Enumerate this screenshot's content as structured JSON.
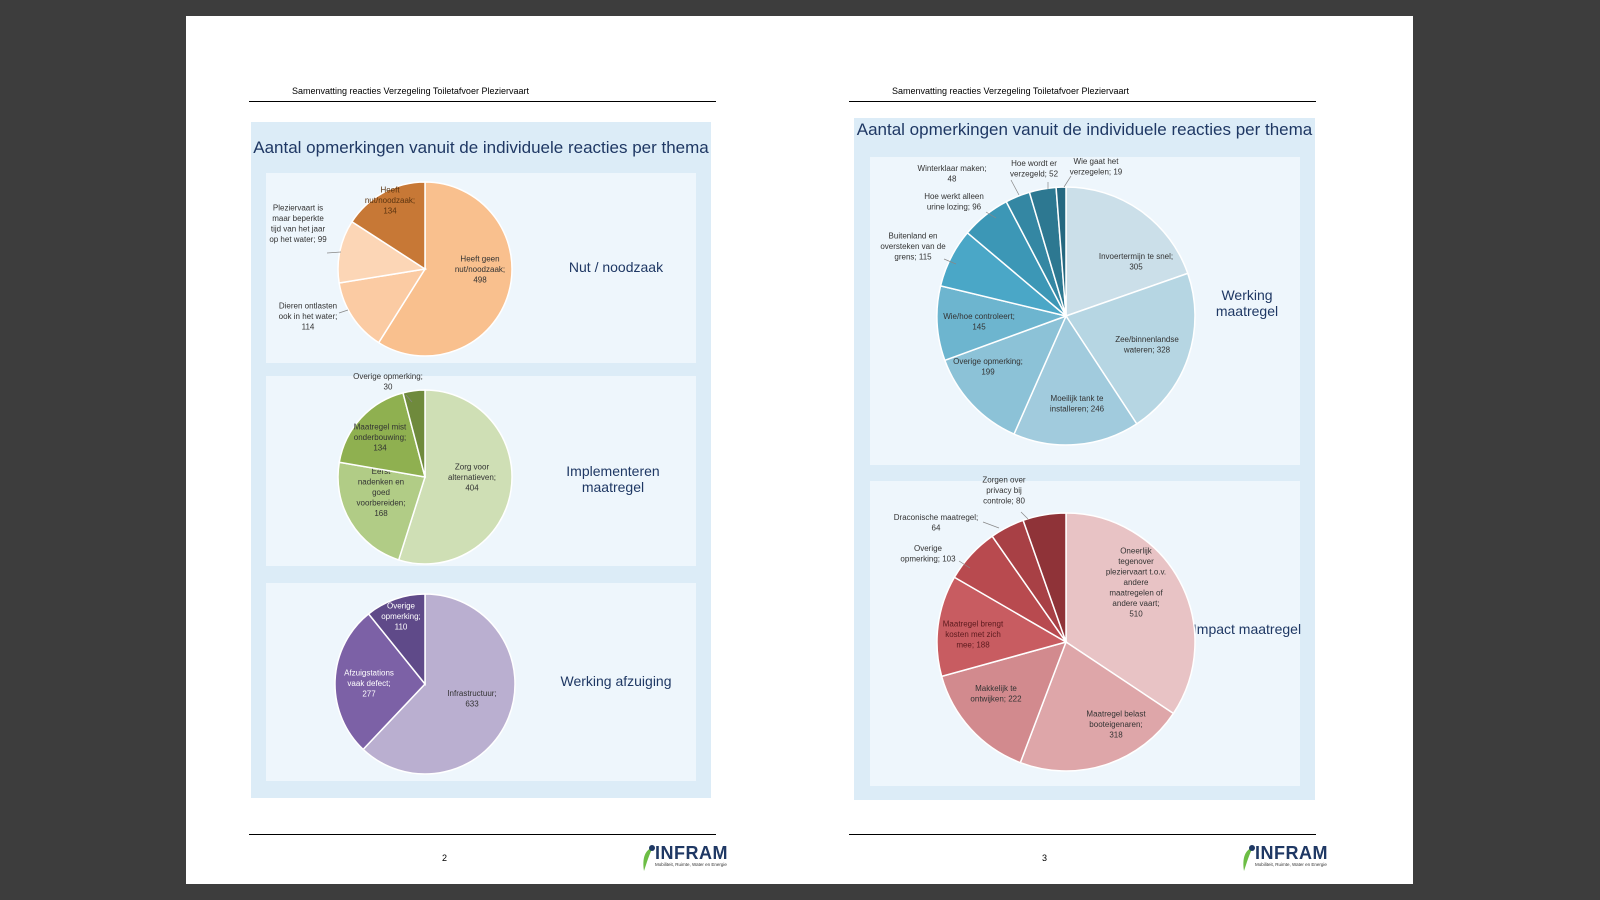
{
  "document": {
    "header": "Samenvatting reacties Verzegeling Toiletafvoer Pleziervaart",
    "logo_text": "INFRAM",
    "logo_tagline": "Mobiliteit, Ruimte, Water en Energie"
  },
  "pages": [
    {
      "number": "2",
      "title": "Aantal opmerkingen vanuit de individuele reacties per thema"
    },
    {
      "number": "3",
      "title": "Aantal opmerkingen vanuit de individuele reacties per thema"
    }
  ],
  "chart_data": [
    {
      "type": "pie",
      "title": "Nut / noodzaak",
      "slices": [
        {
          "label": "Heeft geen nut/noodzaak; 498",
          "value": 498,
          "color": "#f9c08e"
        },
        {
          "label": "Dieren ontlasten ook in het water; 114",
          "value": 114,
          "color": "#fbcba3"
        },
        {
          "label": "Pleziervaart is maar beperkte tijd van het jaar op het water; 99",
          "value": 99,
          "color": "#fcd6b6"
        },
        {
          "label": "Heeft nut/noodzaak; 134",
          "value": 134,
          "color": "#c77836"
        }
      ]
    },
    {
      "type": "pie",
      "title": "Implementeren maatregel",
      "slices": [
        {
          "label": "Zorg voor alternatieven; 404",
          "value": 404,
          "color": "#cfdfb5"
        },
        {
          "label": "Eerst nadenken en goed voorbereiden; 168",
          "value": 168,
          "color": "#b1cc86"
        },
        {
          "label": "Maatregel mist onderbouwing; 134",
          "value": 134,
          "color": "#8fb050"
        },
        {
          "label": "Overige opmerking; 30",
          "value": 30,
          "color": "#6f8a3c"
        }
      ]
    },
    {
      "type": "pie",
      "title": "Werking afzuiging",
      "slices": [
        {
          "label": "Infrastructuur; 633",
          "value": 633,
          "color": "#baafd0"
        },
        {
          "label": "Afzuigstations vaak defect; 277",
          "value": 277,
          "color": "#7c61a6"
        },
        {
          "label": "Overige opmerking; 110",
          "value": 110,
          "color": "#5f4a89"
        }
      ]
    },
    {
      "type": "pie",
      "title": "Werking maatregel",
      "slices": [
        {
          "label": "Invoertermijn te snel; 305",
          "value": 305,
          "color": "#cbdfe9"
        },
        {
          "label": "Zee/binnenlandse wateren; 328",
          "value": 328,
          "color": "#b6d6e3"
        },
        {
          "label": "Moeilijk tank te installeren; 246",
          "value": 246,
          "color": "#a1cbdd"
        },
        {
          "label": "Overige opmerking; 199",
          "value": 199,
          "color": "#8cc2d7"
        },
        {
          "label": "Wie/hoe controleert; 145",
          "value": 145,
          "color": "#6db5cf"
        },
        {
          "label": "Buitenland en oversteken van de grens; 115",
          "value": 115,
          "color": "#4aa7c7"
        },
        {
          "label": "Hoe werkt alleen urine lozing; 96",
          "value": 96,
          "color": "#3c97b6"
        },
        {
          "label": "Winterklaar maken; 48",
          "value": 48,
          "color": "#3487a3"
        },
        {
          "label": "Hoe wordt er verzegeld; 52",
          "value": 52,
          "color": "#2d7891"
        },
        {
          "label": "Wie gaat het verzegelen; 19",
          "value": 19,
          "color": "#256880"
        }
      ]
    },
    {
      "type": "pie",
      "title": "Impact maatregel",
      "slices": [
        {
          "label": "Oneerlijk tegenover pleziervaart t.o.v. andere maatregelen of andere vaart; 510",
          "value": 510,
          "color": "#e8c3c5"
        },
        {
          "label": "Maatregel belast booteigenaren; 318",
          "value": 318,
          "color": "#dea6a9"
        },
        {
          "label": "Makkelijk te ontwijken; 222",
          "value": 222,
          "color": "#d28a8e"
        },
        {
          "label": "Maatregel brengt kosten met zich mee; 188",
          "value": 188,
          "color": "#c85c61"
        },
        {
          "label": "Overige opmerking; 103",
          "value": 103,
          "color": "#b84a4f"
        },
        {
          "label": "Draconische maatregel; 64",
          "value": 64,
          "color": "#a84045"
        },
        {
          "label": "Zorgen over privacy bij controle; 80",
          "value": 80,
          "color": "#8f3338"
        }
      ]
    }
  ]
}
